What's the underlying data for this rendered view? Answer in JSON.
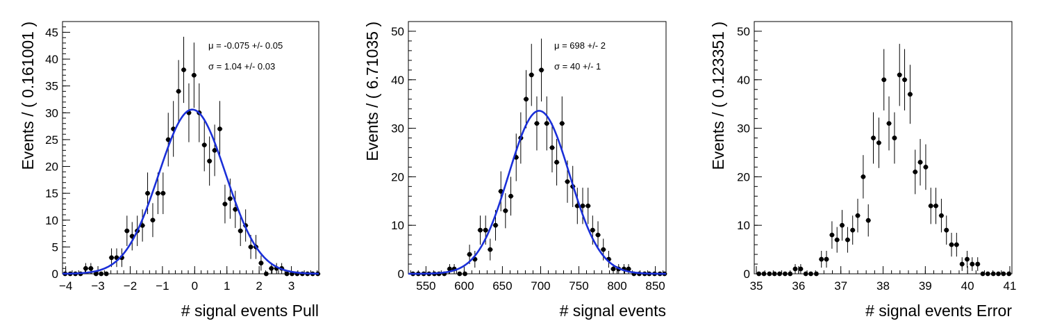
{
  "chart_data": [
    {
      "type": "scatter",
      "xlabel": "# signal events Pull",
      "ylabel": "Events / ( 0.161001 )",
      "xlim": [
        -4.1,
        3.85
      ],
      "ylim": [
        0,
        47
      ],
      "xticks": [
        -4,
        -3,
        -2,
        -1,
        0,
        1,
        2,
        3
      ],
      "yticks": [
        0,
        5,
        10,
        15,
        20,
        25,
        30,
        35,
        40,
        45
      ],
      "fit_label_mu": "μ = -0.075 +/- 0.05",
      "fit_label_sigma": "σ =  1.04 +/- 0.03",
      "fit": {
        "mu": -0.075,
        "sigma": 1.04,
        "amplitude": 30.6
      },
      "fit_color": "#1a2fd8",
      "x": [
        -4.02,
        -3.86,
        -3.7,
        -3.54,
        -3.38,
        -3.22,
        -3.06,
        -2.9,
        -2.74,
        -2.58,
        -2.42,
        -2.26,
        -2.1,
        -1.94,
        -1.78,
        -1.62,
        -1.46,
        -1.3,
        -1.14,
        -0.98,
        -0.82,
        -0.66,
        -0.5,
        -0.34,
        -0.18,
        -0.02,
        0.14,
        0.3,
        0.46,
        0.62,
        0.78,
        0.94,
        1.1,
        1.26,
        1.42,
        1.58,
        1.74,
        1.9,
        2.06,
        2.22,
        2.38,
        2.54,
        2.7,
        2.86,
        3.02,
        3.18,
        3.34,
        3.5,
        3.66,
        3.82
      ],
      "y": [
        0,
        0,
        0,
        0,
        1,
        1,
        0,
        0,
        0,
        3,
        3,
        3,
        8,
        7,
        8,
        9,
        15,
        10,
        15,
        15,
        25,
        27,
        34,
        38,
        30,
        37,
        30,
        24,
        21,
        23,
        27,
        13,
        14,
        12,
        8,
        9,
        5,
        5,
        2,
        0,
        1,
        1,
        1,
        0,
        0,
        0,
        0,
        0,
        0,
        0
      ]
    },
    {
      "type": "scatter",
      "xlabel": "# signal events",
      "ylabel": "Events / ( 6.71035 )",
      "xlim": [
        527,
        864
      ],
      "ylim": [
        0,
        52
      ],
      "xticks": [
        550,
        600,
        650,
        700,
        750,
        800,
        850
      ],
      "yticks": [
        0,
        10,
        20,
        30,
        40,
        50
      ],
      "fit_label_mu": "μ =  698 +/- 2",
      "fit_label_sigma": "σ =  40 +/- 1",
      "fit": {
        "mu": 698,
        "sigma": 40,
        "amplitude": 33.6
      },
      "fit_color": "#1a2fd8",
      "x": [
        533,
        540,
        547,
        554,
        561,
        567,
        574,
        581,
        587,
        594,
        601,
        607,
        614,
        621,
        628,
        634,
        641,
        648,
        654,
        661,
        668,
        674,
        681,
        688,
        695,
        701,
        708,
        715,
        721,
        728,
        735,
        742,
        748,
        755,
        762,
        768,
        775,
        782,
        789,
        795,
        802,
        809,
        815,
        822,
        829,
        836,
        842,
        849,
        856,
        862
      ],
      "y": [
        0,
        0,
        0,
        0,
        0,
        0,
        0,
        1,
        1,
        0,
        0,
        4,
        3,
        9,
        9,
        5,
        10,
        17,
        13,
        16,
        24,
        28,
        36,
        41,
        31,
        42,
        31,
        26,
        23,
        31,
        19,
        18,
        14,
        14,
        14,
        9,
        8,
        5,
        3,
        1,
        1,
        1,
        1,
        0,
        0,
        0,
        0,
        0,
        0,
        0
      ]
    },
    {
      "type": "scatter",
      "xlabel": "# signal events Error",
      "ylabel": "Events / ( 0.123351 )",
      "xlim": [
        34.95,
        41.05
      ],
      "ylim": [
        0,
        52
      ],
      "xticks": [
        35,
        36,
        37,
        38,
        39,
        40,
        41
      ],
      "yticks": [
        0,
        10,
        20,
        30,
        40,
        50
      ],
      "x": [
        35.06,
        35.18,
        35.31,
        35.43,
        35.55,
        35.68,
        35.8,
        35.92,
        36.05,
        36.17,
        36.29,
        36.42,
        36.54,
        36.66,
        36.79,
        36.91,
        37.03,
        37.16,
        37.28,
        37.4,
        37.53,
        37.65,
        37.77,
        37.9,
        38.02,
        38.14,
        38.27,
        38.39,
        38.51,
        38.64,
        38.76,
        38.88,
        39.01,
        39.13,
        39.25,
        39.38,
        39.5,
        39.62,
        39.74,
        39.87,
        39.99,
        40.11,
        40.24,
        40.36,
        40.48,
        40.61,
        40.73,
        40.85,
        40.98
      ],
      "y": [
        0,
        0,
        0,
        0,
        0,
        0,
        0,
        1,
        1,
        0,
        0,
        0,
        3,
        3,
        8,
        7,
        10,
        7,
        9,
        12,
        20,
        11,
        28,
        27,
        40,
        31,
        28,
        41,
        40,
        37,
        21,
        23,
        22,
        14,
        14,
        12,
        9,
        6,
        6,
        2,
        3,
        2,
        2,
        0,
        0,
        0,
        0,
        0,
        0
      ]
    }
  ]
}
